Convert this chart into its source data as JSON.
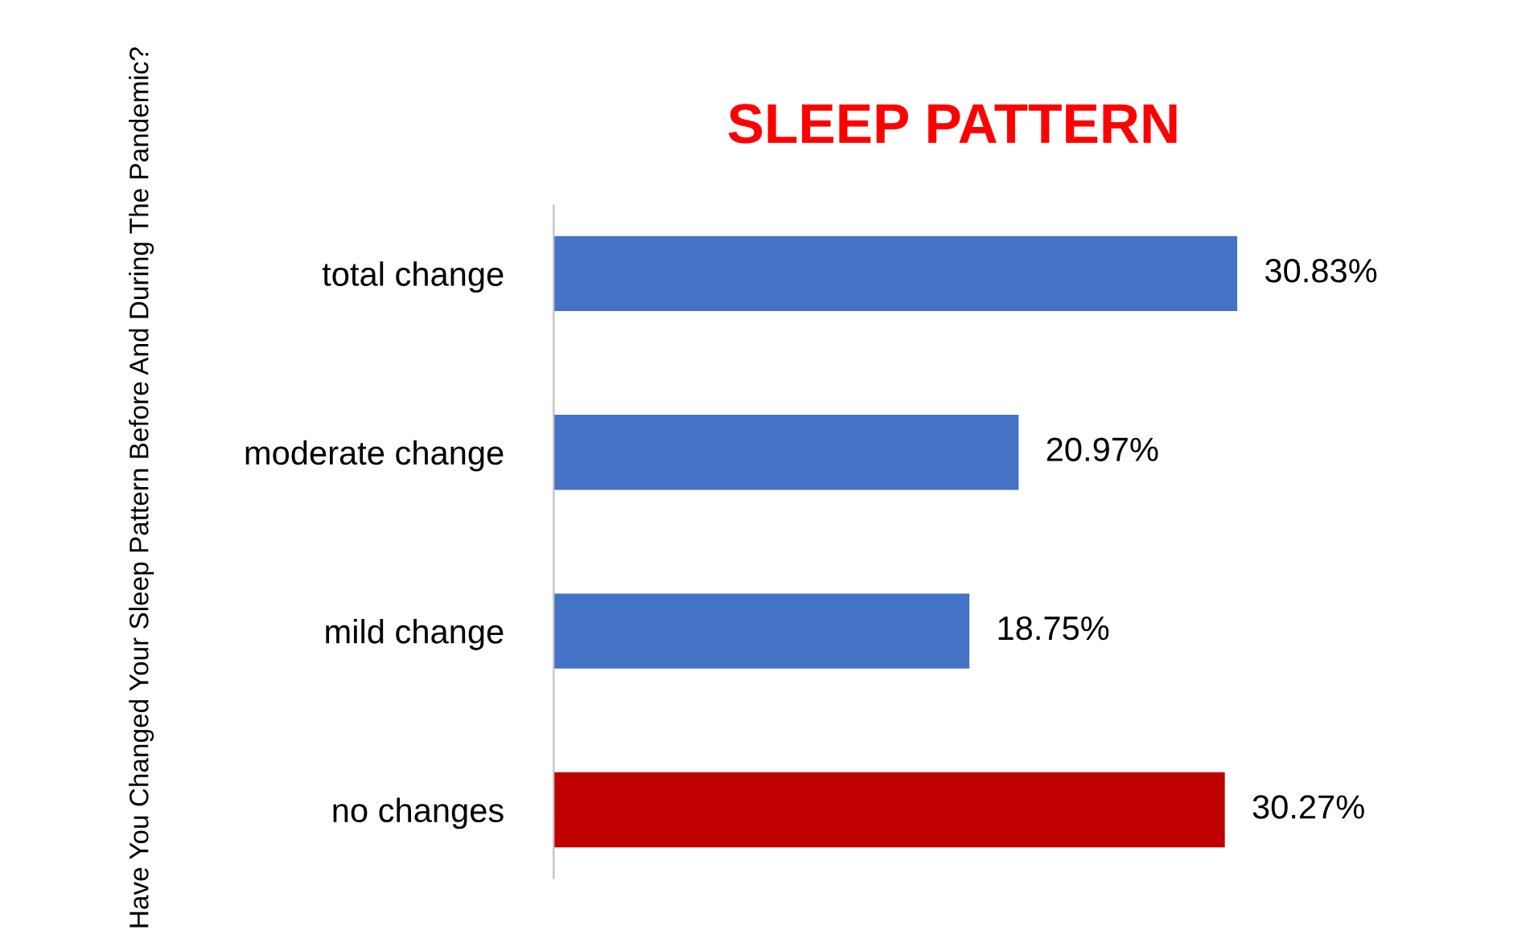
{
  "chart_data": {
    "type": "bar",
    "orientation": "horizontal",
    "title": "SLEEP PATTERN",
    "ylabel": "Have You Changed Your Sleep Pattern Before And During The Pandemic?",
    "categories": [
      "total change",
      "moderate change",
      "mild change",
      "no changes"
    ],
    "values": [
      30.83,
      20.97,
      18.75,
      30.27
    ],
    "colors": [
      "#4472c4",
      "#4472c4",
      "#4472c4",
      "#c00000"
    ],
    "value_labels": [
      "30.83%",
      "20.97%",
      "18.75%",
      "30.27%"
    ],
    "grid": false,
    "legend": false
  }
}
